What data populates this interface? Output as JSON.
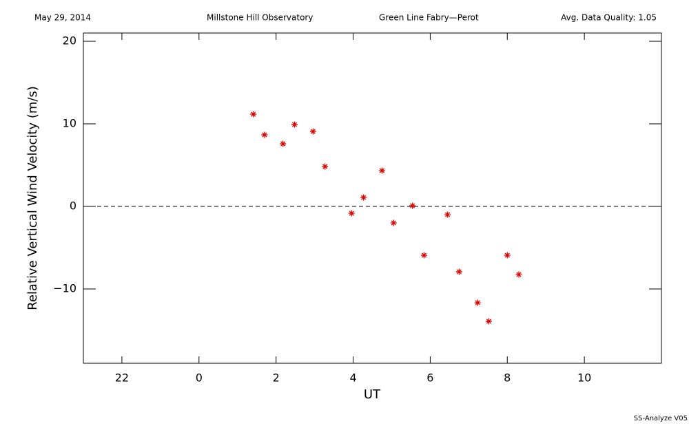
{
  "chart_data": {
    "type": "scatter",
    "header": [
      "May 29, 2014",
      "Millstone Hill Observatory",
      "Green Line Fabry—Perot",
      "Avg. Data Quality: 1.05"
    ],
    "x_label": "UT",
    "y_label": "Relative Vertical Wind Velocity (m/s)",
    "footer": "SS-Analyze V05",
    "xlim": [
      -3,
      12
    ],
    "ylim": [
      -19,
      21
    ],
    "xticks": [
      {
        "value": -2,
        "label": "22"
      },
      0,
      2,
      4,
      6,
      8,
      10
    ],
    "yticks": [
      20,
      10,
      0,
      {
        "value": -10,
        "label": "−10"
      }
    ],
    "reference_line": 0,
    "color": "#e00000",
    "x": [
      1.41,
      1.7,
      2.18,
      2.48,
      2.96,
      3.27,
      3.96,
      4.27,
      4.75,
      5.05,
      5.54,
      5.84,
      6.45,
      6.75,
      7.23,
      7.52,
      8.0,
      8.3
    ],
    "values": [
      11.17,
      8.67,
      7.58,
      9.92,
      9.08,
      4.83,
      -0.83,
      1.08,
      4.33,
      -2.0,
      0.08,
      -5.92,
      -1.0,
      -7.92,
      -11.67,
      -13.92,
      -5.92,
      -8.25
    ]
  }
}
